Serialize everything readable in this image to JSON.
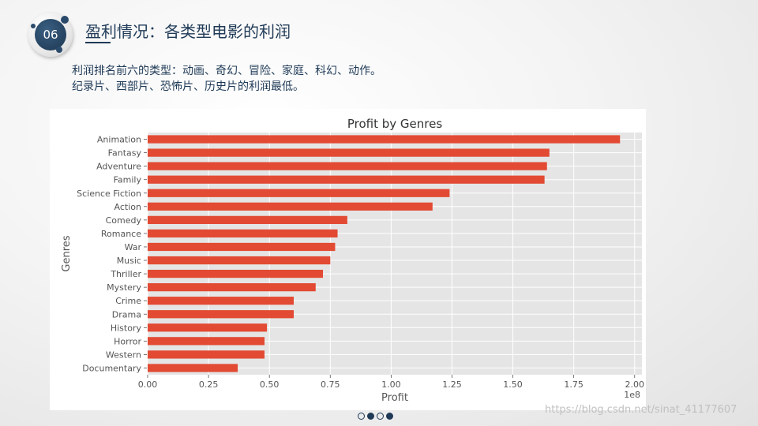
{
  "slide": {
    "number": "06",
    "title": "盈利情况：各类型电影的利润",
    "summary": [
      "利润排名前六的类型：动画、奇幻、冒险、家庭、科幻、动作。",
      "纪录片、西部片、恐怖片、历史片的利润最低。"
    ],
    "pagination": {
      "pages": 4,
      "filled": [
        1,
        3
      ]
    },
    "watermark": "https://blog.csdn.net/sinat_41177607"
  },
  "colors": {
    "bar": "#E24A33",
    "plot_bg": "#E5E5E5",
    "grid": "#FFFFFF",
    "text": "#555555",
    "title": "#333333",
    "accent": "#1F3A57"
  },
  "chart_data": {
    "type": "bar",
    "orientation": "horizontal",
    "title": "Profit by Genres",
    "xlabel": "Profit",
    "ylabel": "Genres",
    "x_offset_label": "1e8",
    "xlim": [
      0,
      2.03
    ],
    "xticks": [
      "0.00",
      "0.25",
      "0.50",
      "0.75",
      "1.00",
      "1.25",
      "1.50",
      "1.75",
      "2.00"
    ],
    "grid": true,
    "categories": [
      "Animation",
      "Fantasy",
      "Adventure",
      "Family",
      "Science Fiction",
      "Action",
      "Comedy",
      "Romance",
      "War",
      "Music",
      "Thriller",
      "Mystery",
      "Crime",
      "Drama",
      "History",
      "Horror",
      "Western",
      "Documentary"
    ],
    "values": [
      1.94,
      1.65,
      1.64,
      1.63,
      1.24,
      1.17,
      0.82,
      0.78,
      0.77,
      0.75,
      0.72,
      0.69,
      0.6,
      0.6,
      0.49,
      0.48,
      0.48,
      0.37
    ]
  }
}
